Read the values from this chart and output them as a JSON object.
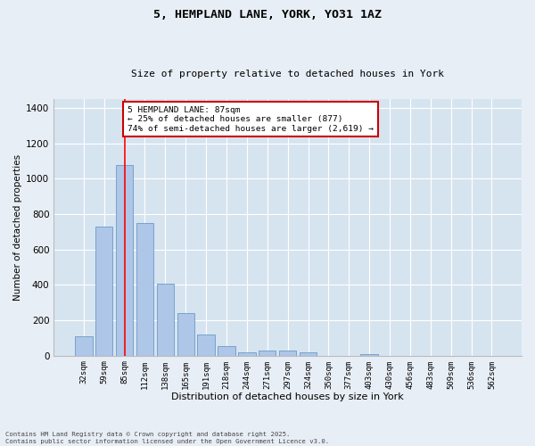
{
  "title1": "5, HEMPLAND LANE, YORK, YO31 1AZ",
  "title2": "Size of property relative to detached houses in York",
  "xlabel": "Distribution of detached houses by size in York",
  "ylabel": "Number of detached properties",
  "categories": [
    "32sqm",
    "59sqm",
    "85sqm",
    "112sqm",
    "138sqm",
    "165sqm",
    "191sqm",
    "218sqm",
    "244sqm",
    "271sqm",
    "297sqm",
    "324sqm",
    "350sqm",
    "377sqm",
    "403sqm",
    "430sqm",
    "456sqm",
    "483sqm",
    "509sqm",
    "536sqm",
    "562sqm"
  ],
  "bar_heights": [
    110,
    730,
    1075,
    750,
    405,
    238,
    120,
    55,
    18,
    30,
    27,
    18,
    0,
    0,
    8,
    0,
    0,
    0,
    0,
    0,
    0
  ],
  "bar_color": "#aec6e8",
  "bar_edge_color": "#5a8fc0",
  "property_line_idx": 2,
  "annotation_title": "5 HEMPLAND LANE: 87sqm",
  "annotation_line1": "← 25% of detached houses are smaller (877)",
  "annotation_line2": "74% of semi-detached houses are larger (2,619) →",
  "annotation_box_edgecolor": "#cc0000",
  "ylim": [
    0,
    1450
  ],
  "yticks": [
    0,
    200,
    400,
    600,
    800,
    1000,
    1200,
    1400
  ],
  "bg_color": "#e8eef5",
  "plot_bg_color": "#d6e4f0",
  "grid_color": "#ffffff",
  "footer1": "Contains HM Land Registry data © Crown copyright and database right 2025.",
  "footer2": "Contains public sector information licensed under the Open Government Licence v3.0."
}
